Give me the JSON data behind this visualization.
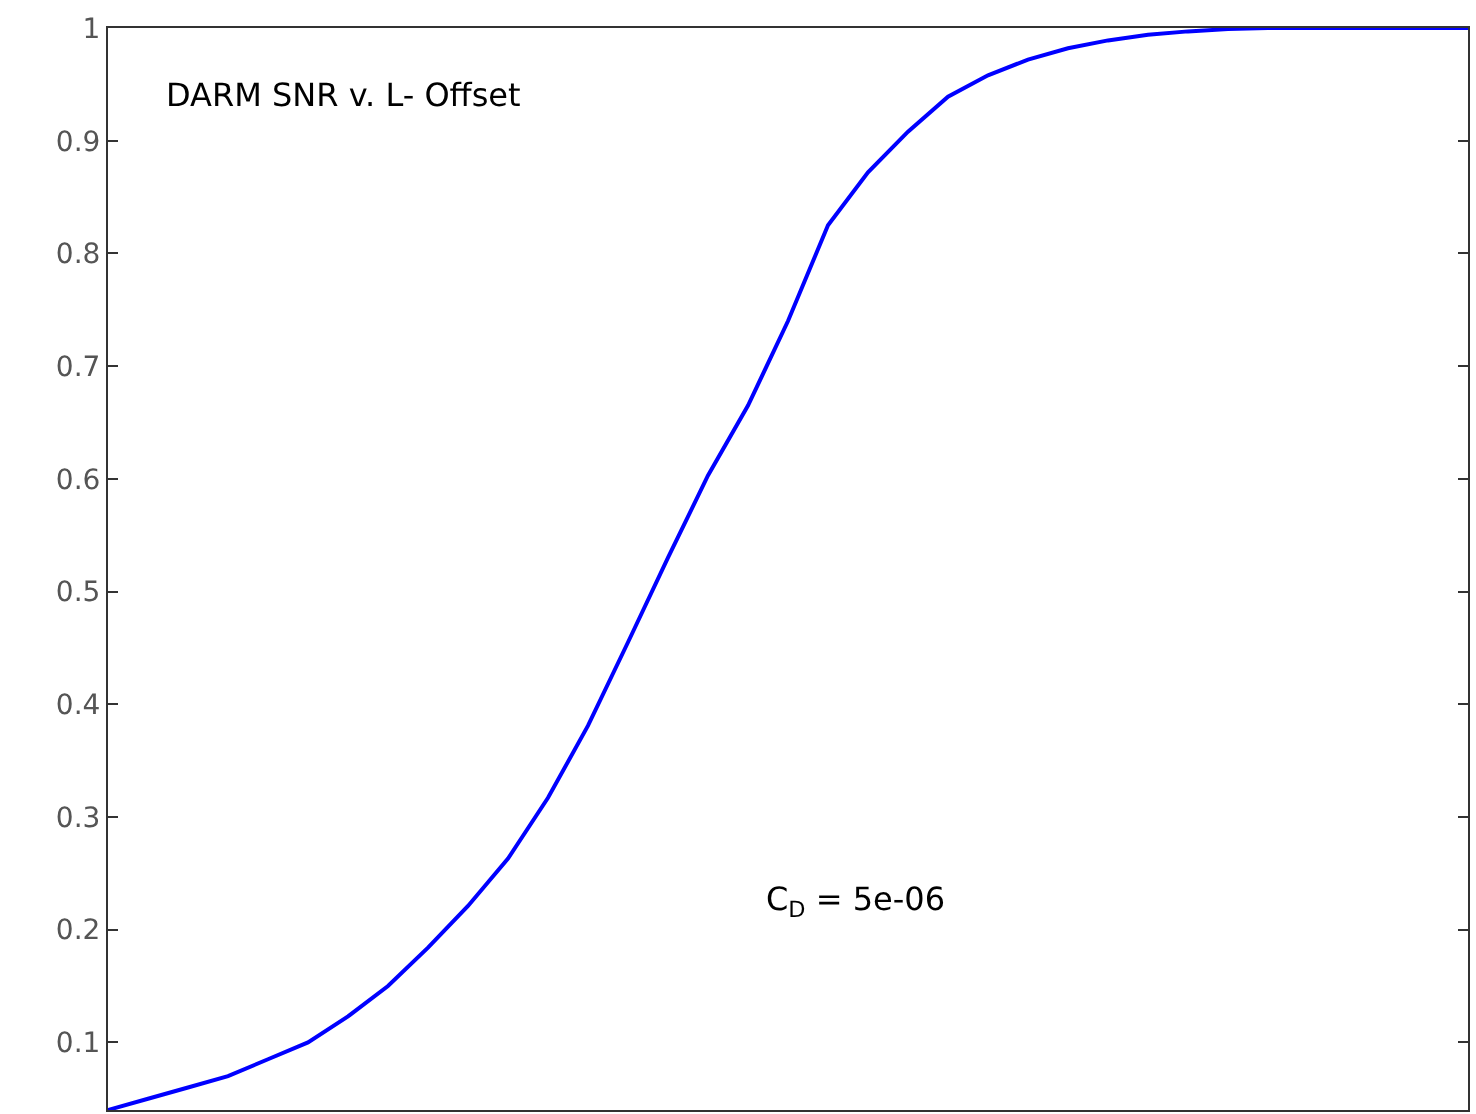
{
  "chart_data": {
    "type": "line",
    "categories": [
      null,
      null,
      null,
      null,
      null,
      null,
      null,
      null,
      null,
      null,
      null,
      null,
      null,
      null,
      null,
      null,
      null,
      null,
      null,
      null,
      null,
      null,
      null,
      null,
      null,
      null,
      null,
      null,
      null,
      null,
      null,
      null,
      null,
      null,
      null
    ],
    "series": [
      {
        "color": "#0000ff",
        "values": [
          0.04,
          0.05,
          0.06,
          0.07,
          0.085,
          0.1,
          0.123,
          0.15,
          0.184,
          0.221,
          0.263,
          0.317,
          0.381,
          0.455,
          0.53,
          0.603,
          0.665,
          0.74,
          0.825,
          0.872,
          0.908,
          0.939,
          0.958,
          0.972,
          0.982,
          0.989,
          0.994,
          0.997,
          0.999,
          1,
          1,
          1,
          1,
          1,
          1
        ]
      }
    ],
    "ylim": [
      0.04,
      1
    ],
    "yticks": [
      0.1,
      0.2,
      0.3,
      0.4,
      0.5,
      0.6,
      0.7,
      0.8,
      0.9,
      1
    ],
    "tick_labels": "y",
    "legend": false,
    "marker": "none",
    "line_style": "solid",
    "annotations": [
      "DARM SNR v. L- Offset",
      "C$_{D}$ = 5e-06"
    ]
  }
}
